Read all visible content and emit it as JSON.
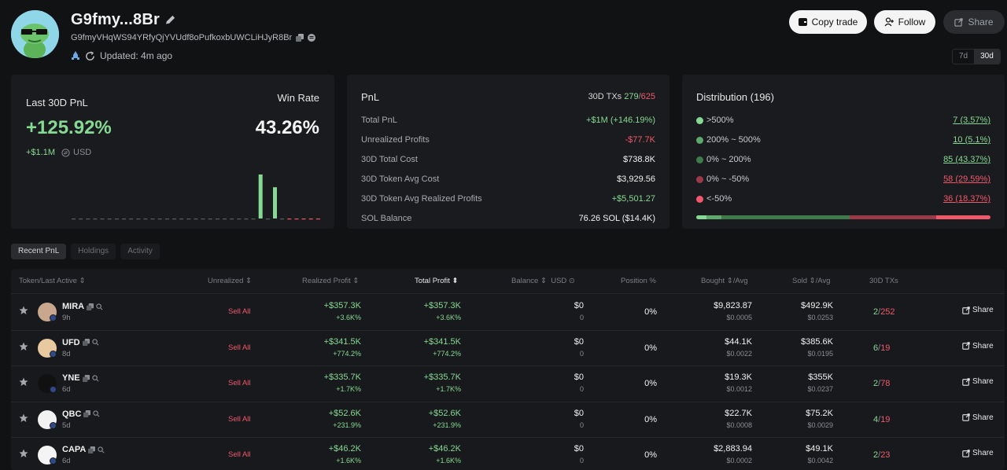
{
  "header": {
    "title": "G9fmy...8Br",
    "address": "G9fmyVHqWS94YRfyQjYVUdf8oPufkoxbUWCLiHJyR8Br",
    "updated": "Updated: 4m ago",
    "buttons": {
      "copy_trade": "Copy trade",
      "follow": "Follow",
      "share": "Share"
    },
    "range": [
      "7d",
      "30d"
    ],
    "range_active": "30d"
  },
  "summary": {
    "label": "Last 30D PnL",
    "pnl_pct": "+125.92%",
    "pnl_usd": "+$1.1M",
    "currency": "USD",
    "win_rate_label": "Win Rate",
    "win_rate": "43.26%",
    "mini_chart": [
      0,
      0,
      0,
      0,
      0,
      0,
      0,
      0,
      0,
      0,
      0,
      0,
      0,
      0,
      0,
      0,
      0,
      0,
      0,
      0,
      0,
      0,
      0,
      0,
      0,
      0,
      1.0,
      0,
      0.71,
      0,
      -0.02,
      -0.02,
      -0.02,
      -0.02,
      -0.02
    ]
  },
  "pnl_card": {
    "title": "PnL",
    "tx_label": "30D TXs",
    "tx_wins": "279",
    "tx_sep": "/",
    "tx_losses": "625",
    "rows": [
      {
        "label": "Total PnL",
        "value": "+$1M (+146.19%)",
        "tone": "green"
      },
      {
        "label": "Unrealized Profits",
        "value": "-$77.7K",
        "tone": "red"
      },
      {
        "label": "30D Total Cost",
        "value": "$738.8K",
        "tone": "white"
      },
      {
        "label": "30D Token Avg Cost",
        "value": "$3,929.56",
        "tone": "white"
      },
      {
        "label": "30D Token Avg Realized Profits",
        "value": "+$5,501.27",
        "tone": "green"
      },
      {
        "label": "SOL Balance",
        "value": "76.26 SOL ($14.4K)",
        "tone": "white"
      }
    ]
  },
  "distribution": {
    "title": "Distribution (196)",
    "rows": [
      {
        "label": ">500%",
        "value": "7 (3.57%)",
        "color": "#86d993",
        "tone": "green",
        "pct": 3.57
      },
      {
        "label": "200% ~ 500%",
        "value": "10 (5.1%)",
        "color": "#5fa86c",
        "tone": "green",
        "pct": 5.1
      },
      {
        "label": "0% ~ 200%",
        "value": "85 (43.37%)",
        "color": "#3e7a4c",
        "tone": "green",
        "pct": 43.37
      },
      {
        "label": "0% ~ -50%",
        "value": "58 (29.59%)",
        "color": "#9a3a48",
        "tone": "red",
        "pct": 29.59
      },
      {
        "label": "<-50%",
        "value": "36 (18.37%)",
        "color": "#f0596c",
        "tone": "red",
        "pct": 18.37
      }
    ]
  },
  "tabs": [
    {
      "label": "Recent PnL",
      "active": true
    },
    {
      "label": "Holdings",
      "active": false
    },
    {
      "label": "Activity",
      "active": false
    }
  ],
  "table": {
    "headers": {
      "token": "Token/Last Active",
      "unrealized": "Unrealized",
      "realized": "Realized Profit",
      "total": "Total Profit",
      "balance": "Balance",
      "usd": "USD",
      "position": "Position %",
      "bought": "Bought",
      "bought_avg": "/Avg",
      "sold": "Sold",
      "sold_avg": "/Avg",
      "txs": "30D TXs"
    },
    "sell_all": "Sell All",
    "share": "Share",
    "rows": [
      {
        "symbol": "MIRA",
        "age": "9h",
        "realized": "+$357.3K",
        "realized_pct": "+3.6K%",
        "total": "+$357.3K",
        "total_pct": "+3.6K%",
        "balance": "$0",
        "balance_sub": "0",
        "position": "0%",
        "bought": "$9,823.87",
        "bought_avg": "$0.0005",
        "sold": "$492.9K",
        "sold_avg": "$0.0253",
        "tx_buy": "2",
        "tx_sell": "252",
        "avatar": "#c9a78c"
      },
      {
        "symbol": "UFD",
        "age": "8d",
        "realized": "+$341.5K",
        "realized_pct": "+774.2%",
        "total": "+$341.5K",
        "total_pct": "+774.2%",
        "balance": "$0",
        "balance_sub": "0",
        "position": "0%",
        "bought": "$44.1K",
        "bought_avg": "$0.0022",
        "sold": "$385.6K",
        "sold_avg": "$0.0195",
        "tx_buy": "6",
        "tx_sell": "19",
        "avatar": "#e8c9a0"
      },
      {
        "symbol": "YNE",
        "age": "6d",
        "realized": "+$335.7K",
        "realized_pct": "+1.7K%",
        "total": "+$335.7K",
        "total_pct": "+1.7K%",
        "balance": "$0",
        "balance_sub": "0",
        "position": "0%",
        "bought": "$19.3K",
        "bought_avg": "$0.0012",
        "sold": "$355K",
        "sold_avg": "$0.0237",
        "tx_buy": "2",
        "tx_sell": "78",
        "avatar": "#111111"
      },
      {
        "symbol": "QBC",
        "age": "5d",
        "realized": "+$52.6K",
        "realized_pct": "+231.9%",
        "total": "+$52.6K",
        "total_pct": "+231.9%",
        "balance": "$0",
        "balance_sub": "0",
        "position": "0%",
        "bought": "$22.7K",
        "bought_avg": "$0.0008",
        "sold": "$75.2K",
        "sold_avg": "$0.0029",
        "tx_buy": "4",
        "tx_sell": "19",
        "avatar": "#f2f2f2"
      },
      {
        "symbol": "CAPA",
        "age": "6d",
        "realized": "+$46.2K",
        "realized_pct": "+1.6K%",
        "total": "+$46.2K",
        "total_pct": "+1.6K%",
        "balance": "$0",
        "balance_sub": "0",
        "position": "0%",
        "bought": "$2,883.94",
        "bought_avg": "$0.0002",
        "sold": "$49.1K",
        "sold_avg": "$0.0042",
        "tx_buy": "2",
        "tx_sell": "23",
        "avatar": "#f4f4f4"
      }
    ]
  }
}
